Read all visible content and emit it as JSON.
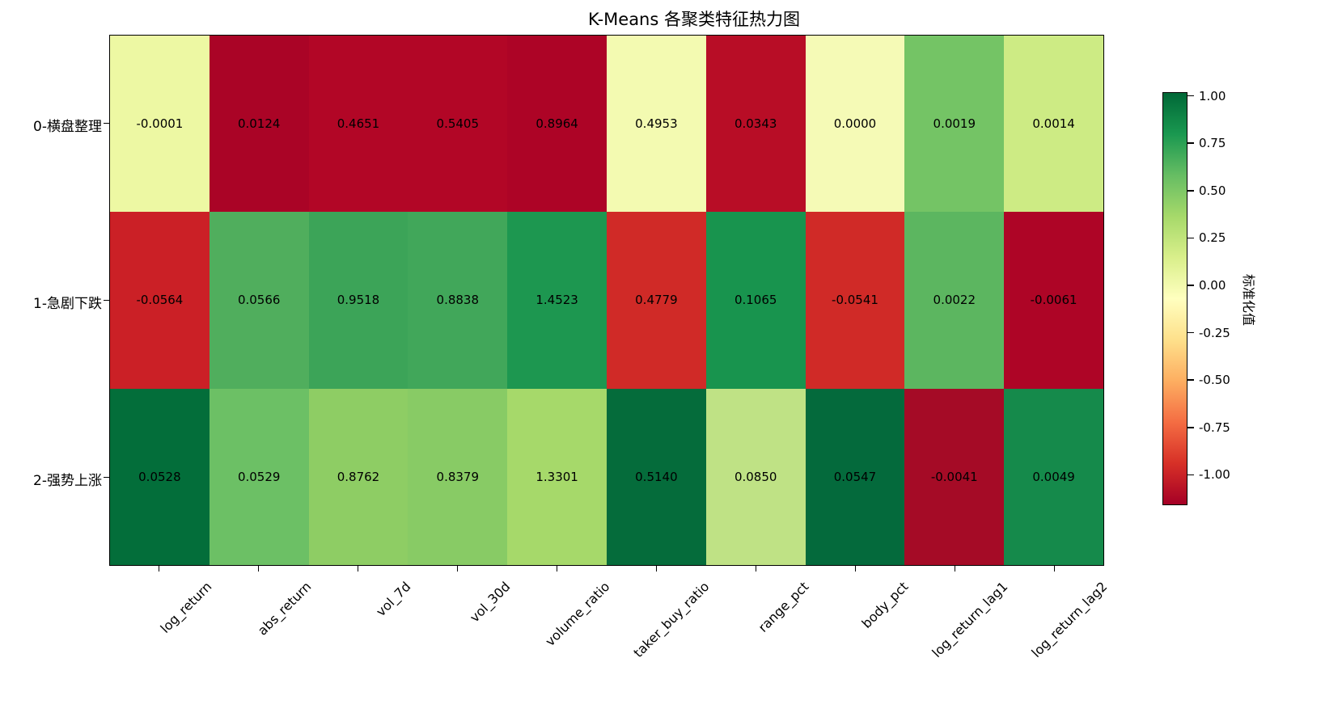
{
  "title": "K-Means 各聚类特征热力图",
  "colorbar": {
    "label": "标准化值",
    "vmax": 1.02,
    "vmin": -1.16,
    "gradient": [
      "#a50026",
      "#d73027",
      "#f46d43",
      "#fdae61",
      "#fee08b",
      "#ffffbf",
      "#d9ef8b",
      "#a6d96a",
      "#66bd63",
      "#1a9850",
      "#006837"
    ],
    "ticks": [
      {
        "label": "1.00",
        "value": 1.0
      },
      {
        "label": "0.75",
        "value": 0.75
      },
      {
        "label": "0.50",
        "value": 0.5
      },
      {
        "label": "0.25",
        "value": 0.25
      },
      {
        "label": "0.00",
        "value": 0.0
      },
      {
        "label": "-0.25",
        "value": -0.25
      },
      {
        "label": "-0.50",
        "value": -0.5
      },
      {
        "label": "-0.75",
        "value": -0.75
      },
      {
        "label": "-1.00",
        "value": -1.0
      }
    ]
  },
  "chart_data": {
    "type": "heatmap",
    "title": "K-Means 各聚类特征热力图",
    "rows": [
      "0-横盘整理",
      "1-急剧下跌",
      "2-强势上涨"
    ],
    "columns": [
      "log_return",
      "abs_return",
      "vol_7d",
      "vol_30d",
      "volume_ratio",
      "taker_buy_ratio",
      "range_pct",
      "body_pct",
      "log_return_lag1",
      "log_return_lag2"
    ],
    "values": [
      [
        "-0.0001",
        "0.0124",
        "0.4651",
        "0.5405",
        "0.8964",
        "0.4953",
        "0.0343",
        "0.0000",
        "0.0019",
        "0.0014"
      ],
      [
        "-0.0564",
        "0.0566",
        "0.9518",
        "0.8838",
        "1.4523",
        "0.4779",
        "0.1065",
        "-0.0541",
        "0.0022",
        "-0.0061"
      ],
      [
        "0.0528",
        "0.0529",
        "0.8762",
        "0.8379",
        "1.3301",
        "0.5140",
        "0.0850",
        "0.0547",
        "-0.0041",
        "0.0049"
      ]
    ],
    "cell_colors": [
      [
        "#edf8a3",
        "#aa0426",
        "#b20626",
        "#b20626",
        "#ad0426",
        "#f3fab1",
        "#b80d26",
        "#f5fab6",
        "#74c465",
        "#cdeb84"
      ],
      [
        "#cb2026",
        "#50ae5d",
        "#3ca458",
        "#41a75a",
        "#1d9750",
        "#d02a27",
        "#18944e",
        "#d02a27",
        "#5cb660",
        "#ae0526"
      ],
      [
        "#036e3a",
        "#6cc065",
        "#8ecd64",
        "#88cb65",
        "#a6d96a",
        "#056c3b",
        "#bfe285",
        "#046a3c",
        "#a50b26",
        "#158a4b"
      ]
    ],
    "colorbar_label": "标准化值",
    "colorbar_ticks": [
      "1.00",
      "0.75",
      "0.50",
      "0.25",
      "0.00",
      "-0.25",
      "-0.50",
      "-0.75",
      "-1.00"
    ]
  }
}
